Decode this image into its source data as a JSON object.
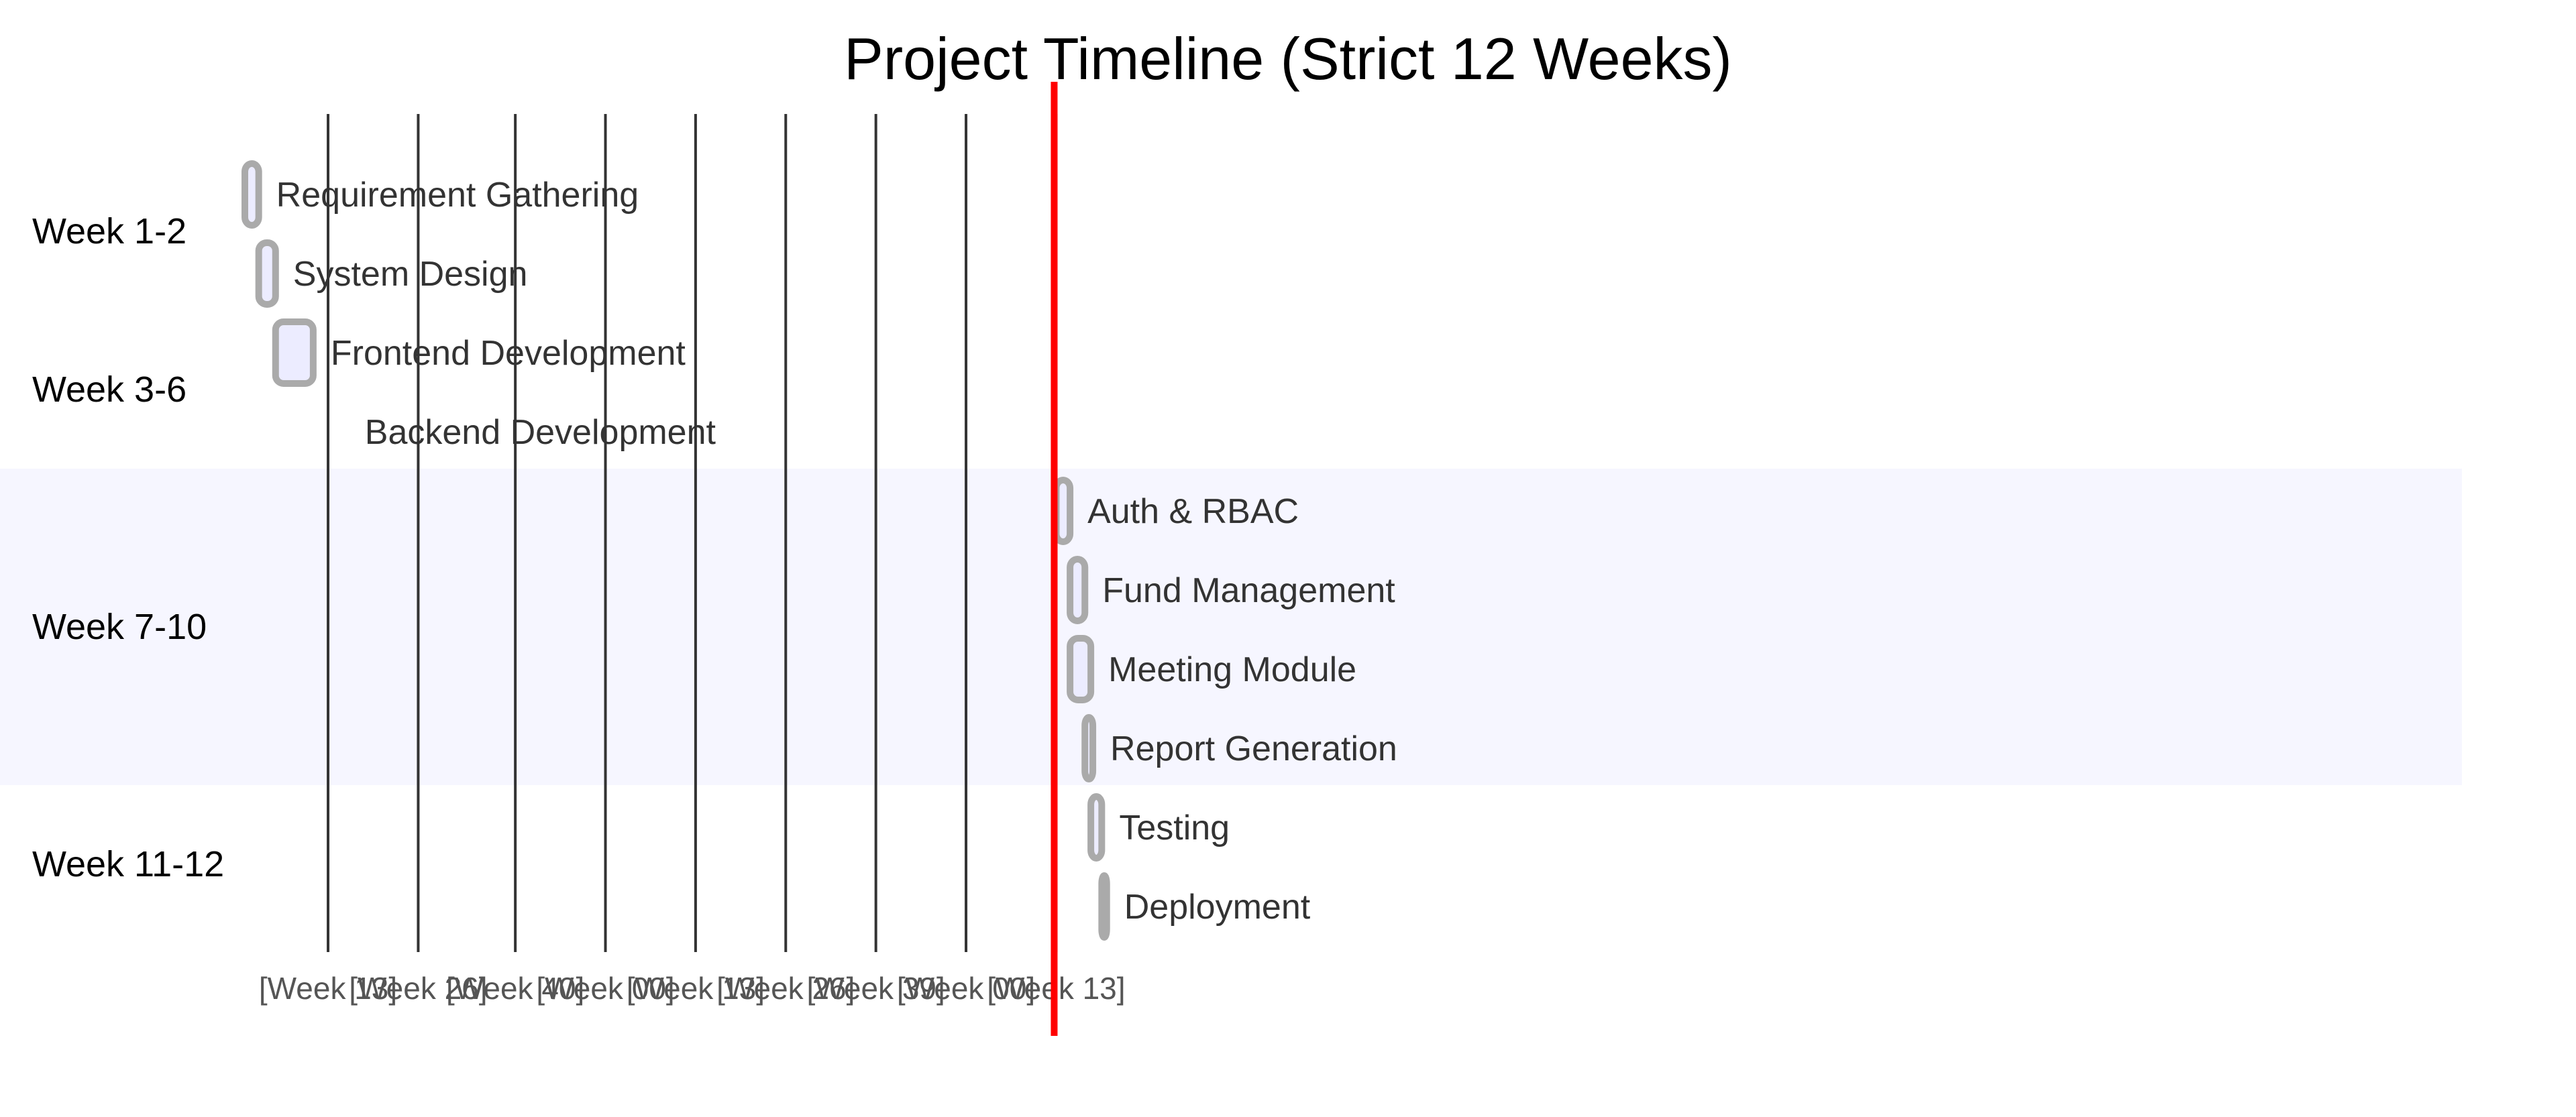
{
  "chart_data": {
    "type": "gantt",
    "title": "Project Timeline (Strict 12 Weeks)",
    "date_format": "YYYY-MM-DD",
    "axis_tick_labels": [
      "[Week 13]",
      "[Week 26]",
      "[Week 40]",
      "[Week 00]",
      "[Week 13]",
      "[Week 26]",
      "[Week 39]",
      "[Week 00]",
      "[Week 13]"
    ],
    "axis_ticks": [
      "2024-03-25",
      "2024-06-24",
      "2024-09-30",
      "2024-12-30",
      "2025-03-31",
      "2025-06-30",
      "2025-09-29",
      "2025-12-29",
      "2026-03-30"
    ],
    "xlim": [
      "2024-01-01",
      "2026-07-01"
    ],
    "today": "2026-03-28",
    "sections": [
      {
        "name": "Week 1-2",
        "tasks": [
          {
            "name": "Requirement Gathering",
            "start": "2024-01-01",
            "end": "2024-01-15"
          },
          {
            "name": "System Design",
            "start": "2024-01-15",
            "end": "2024-02-01"
          }
        ]
      },
      {
        "name": "Week 3-6",
        "tasks": [
          {
            "name": "Frontend Development",
            "start": "2024-02-01",
            "end": "2024-03-10"
          },
          {
            "name": "Backend Development",
            "start": "2024-02-01",
            "end": "2024-02-01"
          }
        ]
      },
      {
        "name": "Week 7-10",
        "tasks": [
          {
            "name": "Auth & RBAC",
            "start": "2026-03-30",
            "end": "2026-04-13"
          },
          {
            "name": "Fund Management",
            "start": "2026-04-13",
            "end": "2026-04-28"
          },
          {
            "name": "Meeting Module",
            "start": "2026-04-13",
            "end": "2026-05-04"
          },
          {
            "name": "Report Generation",
            "start": "2026-04-28",
            "end": "2026-05-06"
          }
        ]
      },
      {
        "name": "Week 11-12",
        "tasks": [
          {
            "name": "Testing",
            "start": "2026-05-04",
            "end": "2026-05-15"
          },
          {
            "name": "Deployment",
            "start": "2026-05-15",
            "end": "2026-05-20"
          }
        ]
      }
    ],
    "colors": {
      "bar_fill": "#ececff",
      "bar_stroke": "#aaaaaa",
      "section_band": "#f6f6ff",
      "grid": "#333333",
      "today_line": "#ff0000"
    }
  }
}
